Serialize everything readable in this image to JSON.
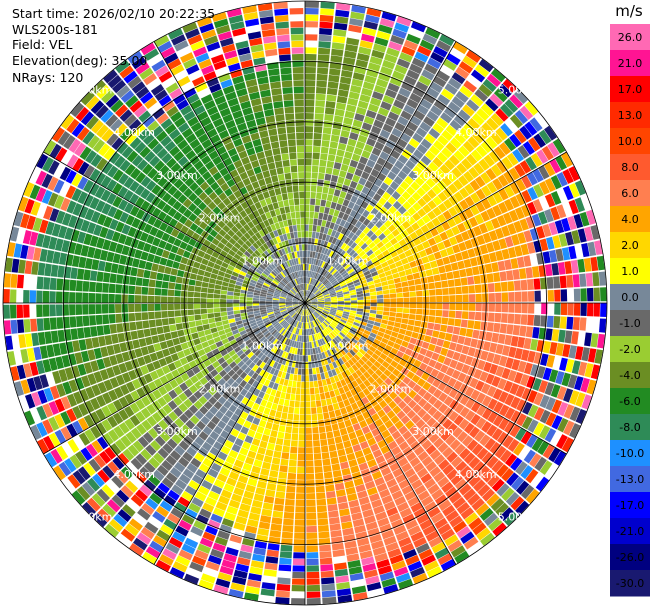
{
  "header": {
    "start_time": "Start time: 2026/02/10 20:22:35",
    "station": "WLS200s-181",
    "field": "Field: VEL",
    "elevation": "Elevation(deg): 35.00",
    "nrays": "NRays: 120"
  },
  "chart_data": {
    "type": "heatmap",
    "projection": "polar-ppi",
    "field": "VEL",
    "nrays": 120,
    "range_rings_km": [
      1,
      2,
      3,
      4,
      5
    ],
    "range_labels": [
      "1.00km",
      "2.00km",
      "3.00km",
      "4.00km",
      "5.00km"
    ],
    "max_range_km": 5.0,
    "colorbar": {
      "unit": "m/s",
      "ticks": [
        "26.0",
        "21.0",
        "17.0",
        "13.0",
        "10.0",
        "8.0",
        "6.0",
        "4.0",
        "2.0",
        "1.0",
        "0.0",
        "-1.0",
        "-2.0",
        "-4.0",
        "-6.0",
        "-8.0",
        "-10.0",
        "-13.0",
        "-17.0",
        "-21.0",
        "-26.0",
        "-30.0"
      ],
      "colors": [
        "#ff69b4",
        "#ff1493",
        "#ff0000",
        "#ff2a00",
        "#ff4500",
        "#ff5a2e",
        "#ff7f50",
        "#ffa500",
        "#ffd700",
        "#ffff00",
        "#778899",
        "#696969",
        "#9acd32",
        "#6b8e23",
        "#228b22",
        "#2e8b57",
        "#1e90ff",
        "#4169e1",
        "#0000ff",
        "#0000cd",
        "#000080",
        "#191970"
      ]
    }
  }
}
